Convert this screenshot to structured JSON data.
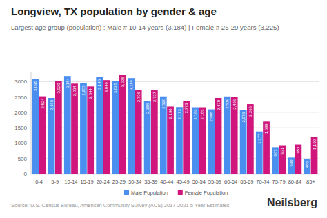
{
  "chart_data": {
    "type": "bar",
    "title": "Longview, TX population by gender & age",
    "subtitle": "Largest age group (population) : Male # 10-14 years (3,184) | Female # 25-29 years (3,225)",
    "source": "Source: U.S. Census Bureau, American Community Survey (ACS) 2017-2021 5-Year Estimates",
    "logo": "Neilsberg",
    "categories": [
      "0-4",
      "5-9",
      "10-14",
      "15-19",
      "20-24",
      "25-29",
      "30-34",
      "35-39",
      "40-44",
      "45-49",
      "50-54",
      "55-59",
      "60-64",
      "65-69",
      "70-74",
      "75-79",
      "80-84",
      "85+"
    ],
    "series": [
      {
        "name": "Male Population",
        "color": "#4a8ff0",
        "values": [
          3095,
          2469,
          3184,
          2955,
          3145,
          3025,
          3116,
          2358,
          2520,
          2173,
          2166,
          2098,
          2519,
          2076,
          1377,
          867,
          530,
          486
        ],
        "value_labels": [
          "3,095",
          "2,469",
          "3,184",
          "2,955",
          "3,145",
          "3,025",
          "3,116",
          "2,358",
          "2,520",
          "2,173",
          "2,166",
          "2,098",
          "2,519",
          "2,076",
          "1,377",
          "867",
          "530",
          "486"
        ]
      },
      {
        "name": "Female Population",
        "color": "#d0157c",
        "values": [
          2524,
          3020,
          2934,
          2844,
          3049,
          3225,
          2736,
          2737,
          2190,
          2373,
          2166,
          2470,
          2496,
          2266,
          1699,
          931,
          953,
          1192
        ],
        "value_labels": [
          "2,524",
          "3,020",
          "2,934",
          "2,844",
          "3,049",
          "3,225",
          "2,736",
          "2,737",
          "2,190",
          "2,373",
          "2,166",
          "2,470",
          "2,496",
          "2,266",
          "1,699",
          "931",
          "953",
          "1,192"
        ]
      }
    ],
    "ylim": [
      0,
      3300
    ],
    "yticks": [
      0,
      500,
      1000,
      1500,
      2000,
      2500,
      3000
    ],
    "grid": true,
    "legend": "bottom",
    "data_labels": true
  }
}
